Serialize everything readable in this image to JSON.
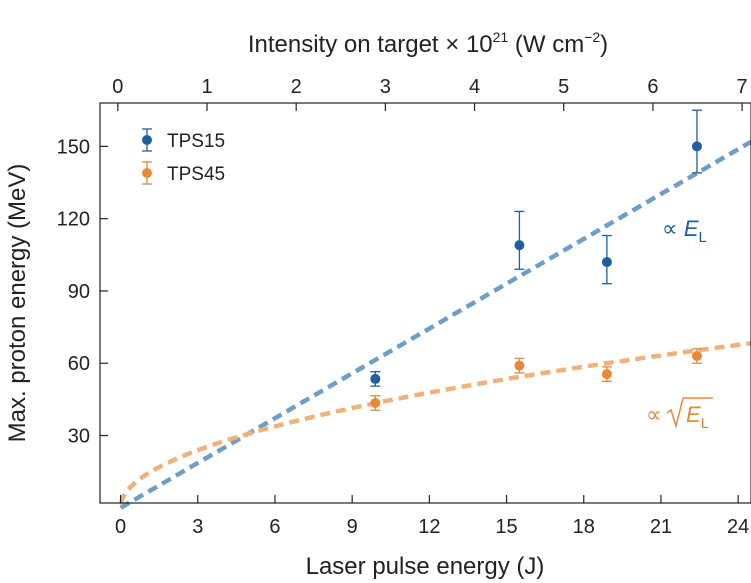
{
  "chart_data": {
    "type": "scatter",
    "xlabel": "Laser pulse energy (J)",
    "ylabel": "Max. proton energy (MeV)",
    "top_xlabel": {
      "main": "Intensity on target × 10",
      "sup": "21",
      "tail1": " (W cm",
      "sup2": "−2",
      "tail2": ")"
    },
    "xlim": [
      -0.8,
      24.5
    ],
    "ylim": [
      2,
      168
    ],
    "top_xlim": [
      -0.2,
      7.1
    ],
    "x_ticks": [
      0,
      3,
      6,
      9,
      12,
      15,
      18,
      21,
      24
    ],
    "y_ticks": [
      30,
      60,
      90,
      120,
      150
    ],
    "top_x_ticks": [
      0,
      1,
      2,
      3,
      4,
      5,
      6,
      7
    ],
    "legend_position": "top-left",
    "series": [
      {
        "name": "TPS15",
        "color": "#1e5fa3",
        "points": [
          {
            "x": 9.9,
            "y": 53.5,
            "err_lo": 3,
            "err_hi": 3
          },
          {
            "x": 15.5,
            "y": 109,
            "err_lo": 10,
            "err_hi": 14
          },
          {
            "x": 18.9,
            "y": 102,
            "err_lo": 9,
            "err_hi": 11
          },
          {
            "x": 22.4,
            "y": 150,
            "err_lo": 11,
            "err_hi": 15
          }
        ]
      },
      {
        "name": "TPS45",
        "color": "#e8883a",
        "points": [
          {
            "x": 9.9,
            "y": 43.5,
            "err_lo": 3,
            "err_hi": 3
          },
          {
            "x": 15.5,
            "y": 59,
            "err_lo": 3,
            "err_hi": 3
          },
          {
            "x": 18.9,
            "y": 55.5,
            "err_lo": 3,
            "err_hi": 3
          },
          {
            "x": 22.4,
            "y": 63,
            "err_lo": 3,
            "err_hi": 3
          }
        ]
      }
    ],
    "fits": [
      {
        "name": "linear",
        "color": "#6e9ec5",
        "label_prefix": "∝ ",
        "label_var": "E",
        "label_sub": "L",
        "x_from": 0,
        "x_to": 24.5,
        "slope": 6.2,
        "intercept": 0
      },
      {
        "name": "sqrt",
        "color": "#f0b27a",
        "label_prefix": "∝ ",
        "label_var": "E",
        "label_sub": "L",
        "x_from": 0,
        "x_to": 24.5,
        "coeff": 13.8
      }
    ]
  }
}
